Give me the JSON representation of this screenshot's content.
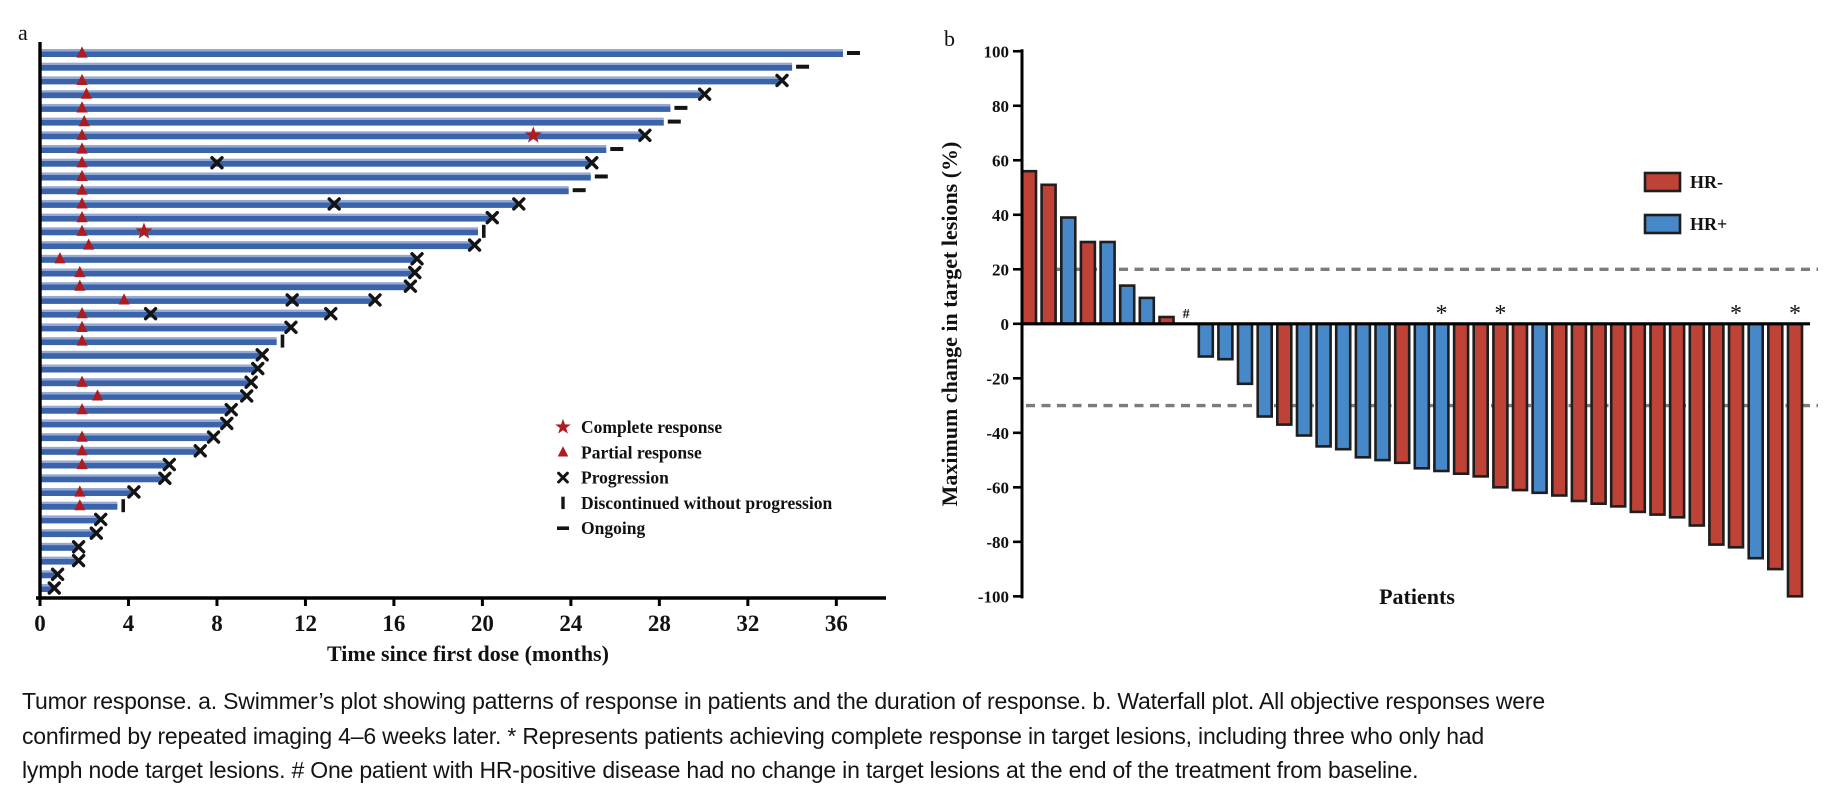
{
  "figure": {
    "panel_a_label": "a",
    "panel_b_label": "b",
    "caption": "Tumor response. a. Swimmer’s plot showing patterns of response in patients and the duration of response. b. Waterfall plot. All objective responses were confirmed by repeated imaging 4–6 weeks later. * Represents patients achieving complete response in target lesions, including three who only had lymph node target lesions. # One patient with HR-positive disease had no change in target lesions at the end of the treatment from baseline."
  },
  "chart_data": [
    {
      "type": "swimmer",
      "panel": "a",
      "xlabel": "Time since first dose (months)",
      "x_ticks": [
        0,
        4,
        8,
        12,
        16,
        20,
        24,
        28,
        32,
        36
      ],
      "xlim": [
        0,
        38.2
      ],
      "bar_color": "#3B63A9",
      "bar_highlight_color": "#93A9D4",
      "marker_color": "#AE1C1F",
      "event_color": "#141414",
      "legend": [
        {
          "marker": "star",
          "label": "Complete response"
        },
        {
          "marker": "triangle",
          "label": "Partial response"
        },
        {
          "marker": "x",
          "label": "Progression"
        },
        {
          "marker": "bar",
          "label": "Discontinued without progression"
        },
        {
          "marker": "dash",
          "label": "Ongoing"
        }
      ],
      "patients": [
        {
          "duration": 36.3,
          "triangle": 1.9,
          "end": "ongoing"
        },
        {
          "duration": 34.0,
          "end": "ongoing"
        },
        {
          "duration": 33.5,
          "triangle": 1.9,
          "end": "x"
        },
        {
          "duration": 30.0,
          "triangle": 2.1,
          "end": "x"
        },
        {
          "duration": 28.5,
          "triangle": 1.9,
          "end": "ongoing"
        },
        {
          "duration": 28.2,
          "triangle": 2.0,
          "end": "ongoing"
        },
        {
          "duration": 27.3,
          "triangle": 1.9,
          "star": 22.3,
          "end": "x"
        },
        {
          "duration": 25.6,
          "triangle": 1.9,
          "end": "ongoing"
        },
        {
          "duration": 24.9,
          "triangle": 1.9,
          "mid_x": [
            8.0
          ],
          "end": "x"
        },
        {
          "duration": 24.9,
          "triangle": 1.9,
          "end": "ongoing"
        },
        {
          "duration": 23.9,
          "triangle": 1.9,
          "end": "ongoing"
        },
        {
          "duration": 21.6,
          "triangle": 1.9,
          "mid_x": [
            13.3
          ],
          "end": "x"
        },
        {
          "duration": 20.4,
          "triangle": 1.9,
          "end": "x"
        },
        {
          "duration": 19.8,
          "triangle": 1.9,
          "star": 4.7,
          "end": "discontinued"
        },
        {
          "duration": 19.6,
          "triangle": 2.2,
          "end": "x"
        },
        {
          "duration": 17.0,
          "triangle": 0.9,
          "end": "x"
        },
        {
          "duration": 16.9,
          "triangle": 1.8,
          "end": "x"
        },
        {
          "duration": 16.7,
          "triangle": 1.8,
          "end": "x"
        },
        {
          "duration": 15.1,
          "triangle": 3.8,
          "mid_x": [
            11.4
          ],
          "end": "x"
        },
        {
          "duration": 13.1,
          "triangle": 1.9,
          "mid_x": [
            5.0
          ],
          "end": "x"
        },
        {
          "duration": 11.3,
          "triangle": 1.9,
          "end": "x"
        },
        {
          "duration": 10.7,
          "triangle": 1.9,
          "end": "discontinued"
        },
        {
          "duration": 10.0,
          "end": "x"
        },
        {
          "duration": 9.8,
          "end": "x"
        },
        {
          "duration": 9.5,
          "triangle": 1.9,
          "end": "x"
        },
        {
          "duration": 9.3,
          "triangle": 2.6,
          "end": "x"
        },
        {
          "duration": 8.6,
          "triangle": 1.9,
          "end": "x"
        },
        {
          "duration": 8.4,
          "end": "x"
        },
        {
          "duration": 7.8,
          "triangle": 1.9,
          "end": "x"
        },
        {
          "duration": 7.2,
          "triangle": 1.9,
          "end": "x"
        },
        {
          "duration": 5.8,
          "triangle": 1.9,
          "end": "x"
        },
        {
          "duration": 5.6,
          "end": "x"
        },
        {
          "duration": 4.2,
          "triangle": 1.8,
          "end": "x"
        },
        {
          "duration": 3.5,
          "triangle": 1.8,
          "end": "discontinued"
        },
        {
          "duration": 2.7,
          "end": "x"
        },
        {
          "duration": 2.5,
          "end": "x"
        },
        {
          "duration": 1.7,
          "end": "x"
        },
        {
          "duration": 1.7,
          "end": "x"
        },
        {
          "duration": 0.75,
          "end": "x"
        },
        {
          "duration": 0.6,
          "end": "x"
        }
      ]
    },
    {
      "type": "waterfall",
      "panel": "b",
      "ylabel": "Maximum change in target lesions (%)",
      "xlabel": "Patients",
      "y_ticks": [
        100,
        80,
        60,
        40,
        20,
        0,
        -20,
        -40,
        -60,
        -80,
        -100
      ],
      "ylim": [
        -100,
        100
      ],
      "ref_lines": [
        20,
        -30
      ],
      "ref_line_color": "#7C7C7C",
      "colors": {
        "HR-": "#BE4236",
        "HR+": "#4789C8"
      },
      "legend": [
        {
          "label": "HR-",
          "group": "HR-",
          "color": "#BE4236"
        },
        {
          "label": "HR+",
          "group": "HR+",
          "color": "#4789C8"
        }
      ],
      "patients": [
        {
          "value": 56,
          "group": "HR-"
        },
        {
          "value": 51,
          "group": "HR-"
        },
        {
          "value": 39,
          "group": "HR+"
        },
        {
          "value": 30,
          "group": "HR-"
        },
        {
          "value": 30,
          "group": "HR+"
        },
        {
          "value": 14,
          "group": "HR+"
        },
        {
          "value": 9.5,
          "group": "HR+"
        },
        {
          "value": 2.5,
          "group": "HR-"
        },
        {
          "value": 0,
          "group": "HR+",
          "marker": "#"
        },
        {
          "value": -12,
          "group": "HR+"
        },
        {
          "value": -13,
          "group": "HR+"
        },
        {
          "value": -22,
          "group": "HR+"
        },
        {
          "value": -34,
          "group": "HR+"
        },
        {
          "value": -37,
          "group": "HR-"
        },
        {
          "value": -41,
          "group": "HR+"
        },
        {
          "value": -45,
          "group": "HR+"
        },
        {
          "value": -46,
          "group": "HR+"
        },
        {
          "value": -49,
          "group": "HR+"
        },
        {
          "value": -50,
          "group": "HR+"
        },
        {
          "value": -51,
          "group": "HR-"
        },
        {
          "value": -53,
          "group": "HR+"
        },
        {
          "value": -54,
          "group": "HR+",
          "marker": "*"
        },
        {
          "value": -55,
          "group": "HR-"
        },
        {
          "value": -56,
          "group": "HR-"
        },
        {
          "value": -60,
          "group": "HR-",
          "marker": "*"
        },
        {
          "value": -61,
          "group": "HR-"
        },
        {
          "value": -62,
          "group": "HR+"
        },
        {
          "value": -63,
          "group": "HR-"
        },
        {
          "value": -65,
          "group": "HR-"
        },
        {
          "value": -66,
          "group": "HR-"
        },
        {
          "value": -67,
          "group": "HR-"
        },
        {
          "value": -69,
          "group": "HR-"
        },
        {
          "value": -70,
          "group": "HR-"
        },
        {
          "value": -71,
          "group": "HR-"
        },
        {
          "value": -74,
          "group": "HR-"
        },
        {
          "value": -81,
          "group": "HR-"
        },
        {
          "value": -82,
          "group": "HR-",
          "marker": "*"
        },
        {
          "value": -86,
          "group": "HR+"
        },
        {
          "value": -90,
          "group": "HR-"
        },
        {
          "value": -100,
          "group": "HR-",
          "marker": "*"
        }
      ]
    }
  ]
}
